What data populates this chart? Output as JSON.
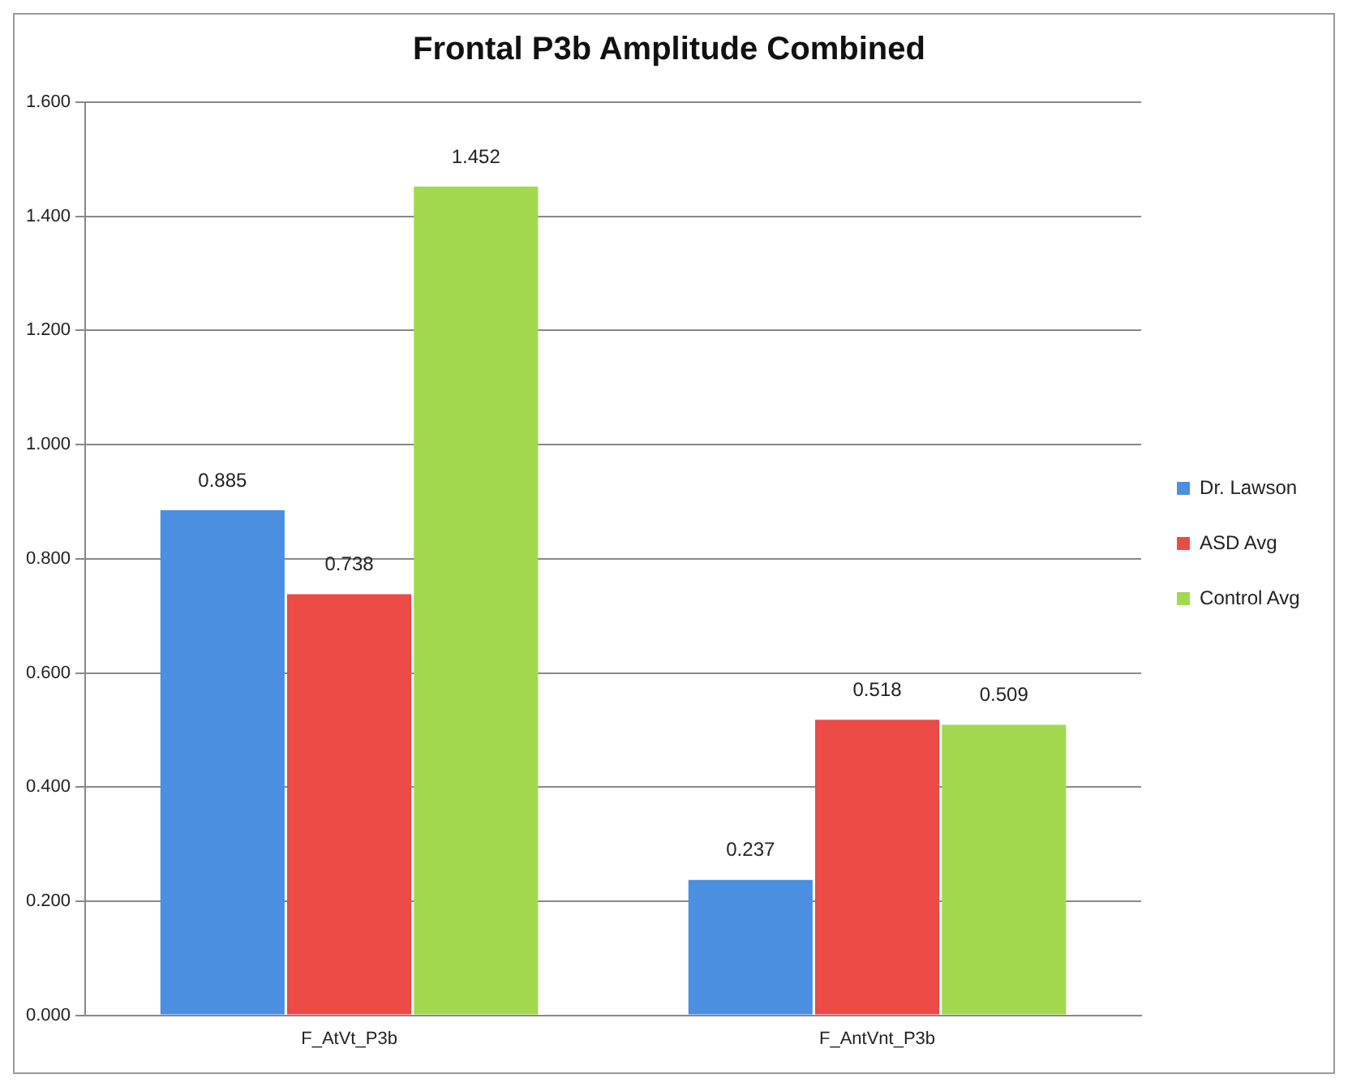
{
  "chart_data": {
    "type": "bar",
    "title": "Frontal P3b Amplitude Combined",
    "categories": [
      "F_AtVt_P3b",
      "F_AntVnt_P3b"
    ],
    "series": [
      {
        "name": "Dr. Lawson",
        "color": "#4a8fe0",
        "values": [
          0.885,
          0.237
        ]
      },
      {
        "name": "ASD Avg",
        "color": "#ec4a45",
        "values": [
          0.738,
          0.518
        ]
      },
      {
        "name": "Control Avg",
        "color": "#a2d94e",
        "values": [
          1.452,
          0.509
        ]
      }
    ],
    "ylim": [
      0,
      1.6
    ],
    "yticks": [
      {
        "value": 0,
        "label": "0.000"
      },
      {
        "value": 0.2,
        "label": "0.200"
      },
      {
        "value": 0.4,
        "label": "0.400"
      },
      {
        "value": 0.6,
        "label": "0.600"
      },
      {
        "value": 0.8,
        "label": "0.800"
      },
      {
        "value": 1.0,
        "label": "1.000"
      },
      {
        "value": 1.2,
        "label": "1.200"
      },
      {
        "value": 1.4,
        "label": "1.400"
      },
      {
        "value": 1.6,
        "label": "1.600"
      }
    ],
    "grid": "y",
    "legend": "right",
    "data_labels": true
  }
}
